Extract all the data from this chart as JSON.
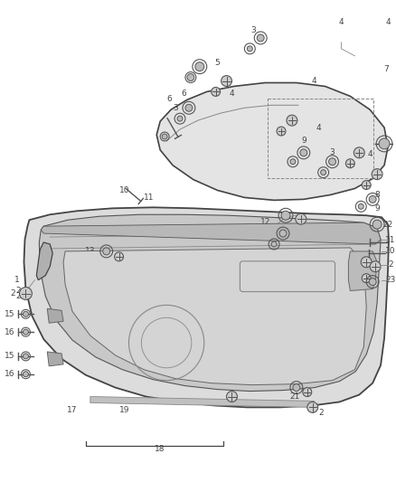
{
  "background_color": "#ffffff",
  "fig_width": 4.38,
  "fig_height": 5.33,
  "dpi": 100,
  "line_color": "#444444",
  "text_color": "#444444",
  "gray_fill": "#d8d8d8",
  "light_fill": "#ebebeb",
  "dark_fill": "#aaaaaa"
}
